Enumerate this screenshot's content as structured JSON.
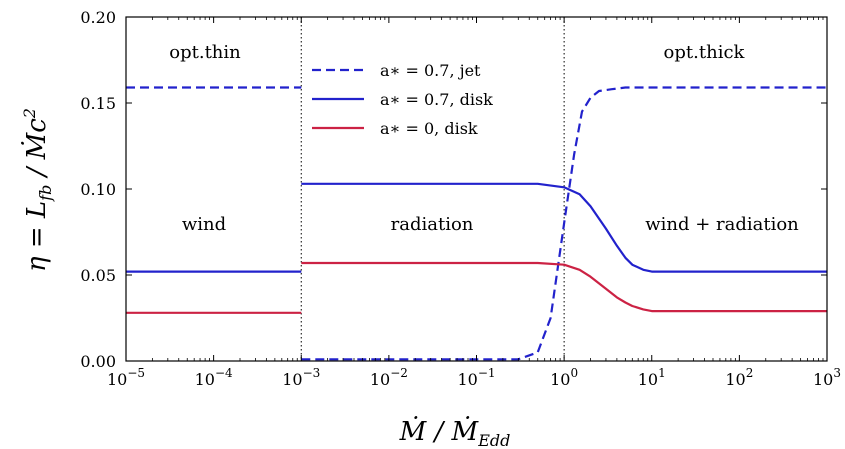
{
  "chart_data": {
    "type": "line",
    "xscale": "log",
    "xlim": [
      1e-05,
      1000
    ],
    "ylim": [
      0,
      0.2
    ],
    "xticks": [
      1e-05,
      0.0001,
      0.001,
      0.01,
      0.1,
      1,
      10,
      100,
      1000
    ],
    "x_tick_exponents": [
      "−5",
      "−4",
      "−3",
      "−2",
      "−1",
      "0",
      "1",
      "2",
      "3"
    ],
    "x_tick_base": "10",
    "yticks": [
      0,
      0.05,
      0.1,
      0.15,
      0.2
    ],
    "y_tick_labels": [
      "0.00",
      "0.05",
      "0.10",
      "0.15",
      "0.20"
    ],
    "xlabel": "Ṁ / Ṁ_Edd",
    "ylabel": "η = L_fb / Ṁ c²",
    "legend_location": "top-center",
    "vlines": [
      0.001,
      1
    ],
    "vline_style": "dotted",
    "region_labels": {
      "opt_thin": "opt.thin",
      "opt_thick": "opt.thick",
      "wind": "wind",
      "radiation": "radiation",
      "wind_radiation": "wind + radiation"
    },
    "series": [
      {
        "name": "a∗ = 0.7, jet",
        "color": "#2222cc",
        "style": "dashed",
        "segments": [
          {
            "x": [
              1e-05,
              0.001
            ],
            "y": [
              0.159,
              0.159
            ]
          },
          {
            "x": [
              0.001,
              0.1,
              0.3,
              0.5,
              0.7,
              1.0,
              1.3,
              1.6,
              2.0,
              2.5,
              3.5,
              5,
              1000
            ],
            "y": [
              0.001,
              0.001,
              0.001,
              0.005,
              0.025,
              0.08,
              0.12,
              0.145,
              0.153,
              0.157,
              0.158,
              0.159,
              0.159
            ]
          }
        ]
      },
      {
        "name": "a∗ = 0.7, disk",
        "color": "#2222cc",
        "style": "solid",
        "segments": [
          {
            "x": [
              1e-05,
              0.001
            ],
            "y": [
              0.052,
              0.052
            ]
          },
          {
            "x": [
              0.001,
              0.5,
              1.0,
              1.5,
              2.0,
              3.0,
              4.0,
              5.0,
              6.0,
              8.0,
              10,
              20,
              1000
            ],
            "y": [
              0.103,
              0.103,
              0.101,
              0.097,
              0.09,
              0.077,
              0.067,
              0.06,
              0.056,
              0.053,
              0.052,
              0.052,
              0.052
            ]
          }
        ]
      },
      {
        "name": "a∗ = 0, disk",
        "color": "#cc2244",
        "style": "solid",
        "segments": [
          {
            "x": [
              1e-05,
              0.001
            ],
            "y": [
              0.028,
              0.028
            ]
          },
          {
            "x": [
              0.001,
              0.5,
              1.0,
              1.5,
              2.0,
              3.0,
              4.0,
              5.0,
              6.0,
              8.0,
              10,
              20,
              1000
            ],
            "y": [
              0.057,
              0.057,
              0.056,
              0.053,
              0.049,
              0.042,
              0.037,
              0.034,
              0.032,
              0.03,
              0.029,
              0.029,
              0.029
            ]
          }
        ]
      }
    ]
  }
}
